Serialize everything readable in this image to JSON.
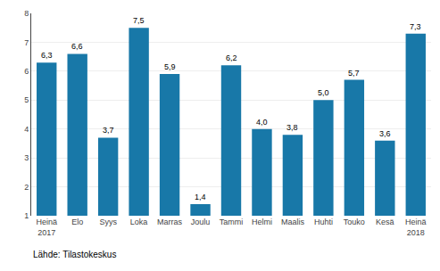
{
  "chart_data": {
    "type": "bar",
    "categories": [
      "Heinä\n2017",
      "Elo",
      "Syys",
      "Loka",
      "Marras",
      "Joulu",
      "Tammi",
      "Helmi",
      "Maalis",
      "Huhti",
      "Touko",
      "Kesä",
      "Heinä\n2018"
    ],
    "values": [
      6.3,
      6.6,
      3.7,
      7.5,
      5.9,
      1.4,
      6.2,
      4.0,
      3.8,
      5.0,
      5.7,
      3.6,
      7.3
    ],
    "value_labels": [
      "6,3",
      "6,6",
      "3,7",
      "7,5",
      "5,9",
      "1,4",
      "6,2",
      "4,0",
      "3,8",
      "5,0",
      "5,7",
      "3,6",
      "7,3"
    ],
    "color": "#1878a8",
    "ylim": [
      1,
      8
    ],
    "yticks": [
      1,
      2,
      3,
      4,
      5,
      6,
      7,
      8
    ],
    "grid": true,
    "data_labels": true,
    "annotations": [
      "Lähde: Tilastokeskus"
    ]
  }
}
